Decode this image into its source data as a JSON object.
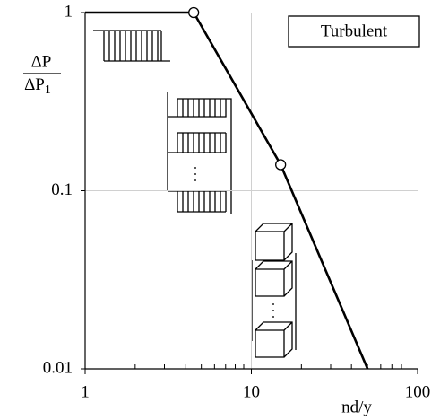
{
  "chart_data": {
    "type": "line",
    "xlabel": "nd/y",
    "ylabel_numerator": "ΔP",
    "ylabel_denominator": "ΔP",
    "ylabel_denominator_subscript": "1",
    "annotation": "Turbulent",
    "log_x": true,
    "log_y": true,
    "grid": true,
    "xlim": [
      1,
      100
    ],
    "ylim": [
      0.01,
      1
    ],
    "xticks": [
      1,
      10,
      100
    ],
    "yticks": [
      0.01,
      0.1,
      1
    ],
    "xminorticks": [
      2,
      3,
      4,
      5,
      6,
      7,
      8,
      9,
      20,
      30,
      40,
      50,
      60,
      70,
      80,
      90
    ],
    "series": [
      {
        "color": "#000000",
        "x": [
          1,
          4.5,
          15,
          50
        ],
        "values": [
          1,
          1,
          0.14,
          0.01
        ]
      }
    ],
    "points": {
      "x": [
        4.5,
        15
      ],
      "values": [
        1,
        0.14
      ]
    }
  }
}
